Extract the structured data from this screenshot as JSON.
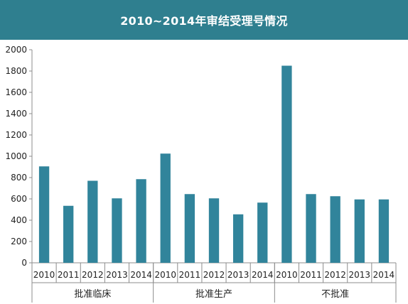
{
  "title": "2010~2014年审结受理号情况",
  "colors": {
    "title_bg": "#2f7f8f",
    "bar": "#31849b",
    "axis": "#8c8c8c",
    "grid": "#bfbfbf"
  },
  "chart_data": {
    "type": "bar",
    "title": "2010~2014年审结受理号情况",
    "xlabel": "",
    "ylabel": "",
    "ylim": [
      0,
      2000
    ],
    "yticks": [
      0,
      200,
      400,
      600,
      800,
      1000,
      1200,
      1400,
      1600,
      1800,
      2000
    ],
    "grid": false,
    "legend": "none",
    "groups": [
      {
        "label": "批准临床",
        "categories": [
          "2010",
          "2011",
          "2012",
          "2013",
          "2014"
        ],
        "values": [
          905,
          535,
          770,
          605,
          785
        ]
      },
      {
        "label": "批准生产",
        "categories": [
          "2010",
          "2011",
          "2012",
          "2013",
          "2014"
        ],
        "values": [
          1025,
          645,
          605,
          455,
          565
        ]
      },
      {
        "label": "不批准",
        "categories": [
          "2010",
          "2011",
          "2012",
          "2013",
          "2014"
        ],
        "values": [
          1850,
          645,
          625,
          595,
          595
        ]
      }
    ]
  }
}
